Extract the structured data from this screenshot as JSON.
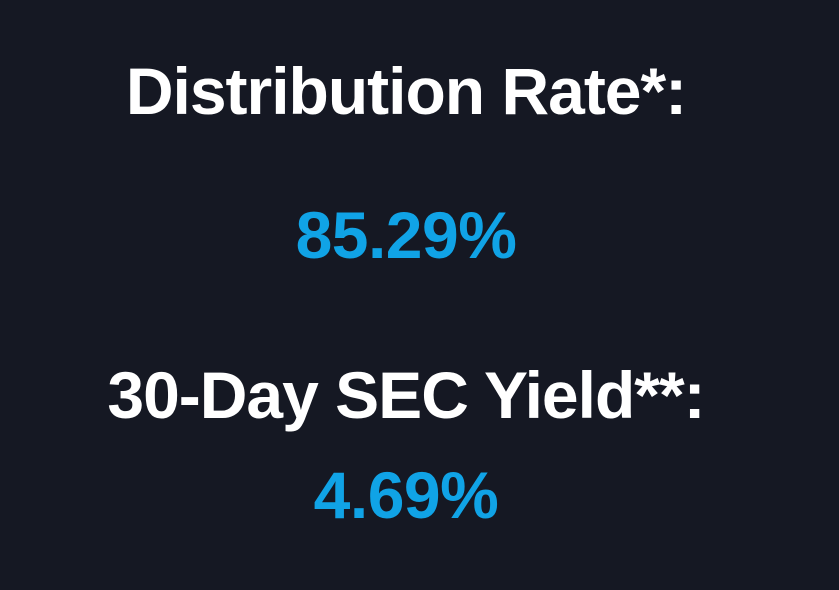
{
  "distribution": {
    "label": "Distribution Rate*:",
    "value": "85.29%"
  },
  "sec_yield": {
    "label": "30-Day SEC Yield**:",
    "value": "4.69%"
  },
  "colors": {
    "background": "#151823",
    "label": "#ffffff",
    "value": "#10a3e6"
  }
}
